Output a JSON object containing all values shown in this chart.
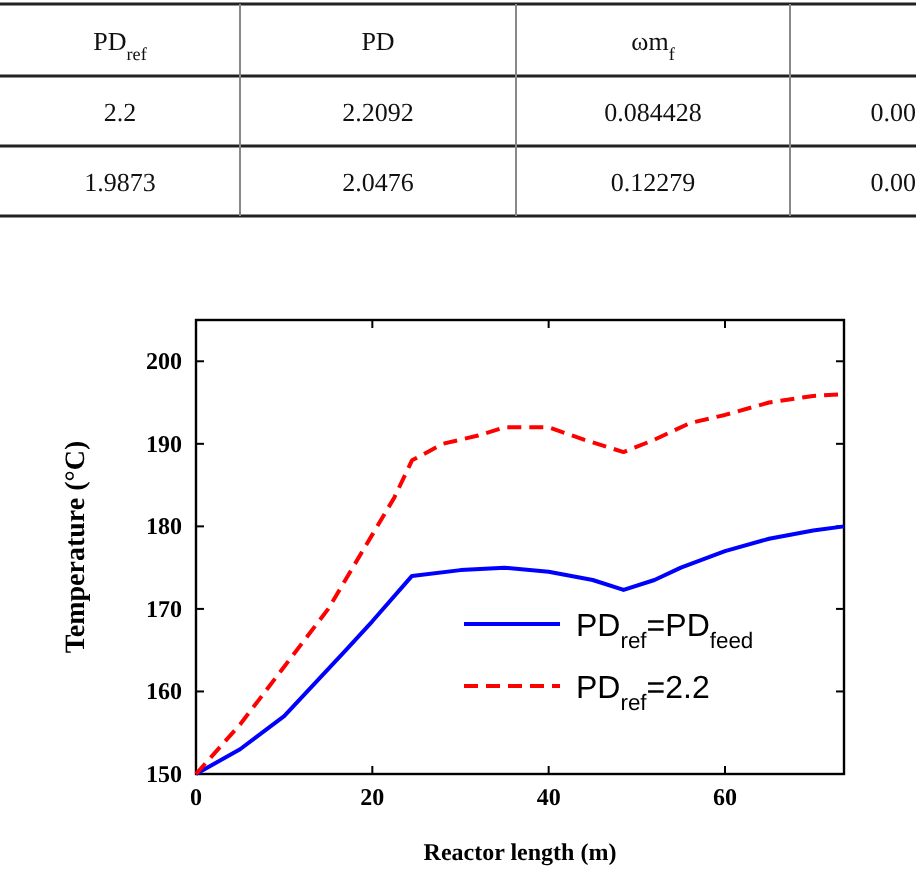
{
  "chart_data": [
    {
      "type": "other",
      "annotations": [
        "PD$_{ref}$",
        "PD",
        "ωm$_{f}$",
        "2.2",
        "2.2092",
        "0.084428",
        "0.00",
        "1.9873",
        "2.0476",
        "0.12279",
        "0.00"
      ]
    },
    {
      "type": "line",
      "xlabel": "Reactor length (m)",
      "ylabel": "Temperature (°C)",
      "xlim": [
        0,
        73.5
      ],
      "ylim": [
        150,
        205
      ],
      "xticks": [
        0,
        20,
        40,
        60
      ],
      "yticks": [
        150,
        160,
        170,
        180,
        190,
        200
      ],
      "grid": false,
      "legend": "bottom right",
      "marker": "none",
      "series": [
        {
          "name": "PD$_{ref}$=PD$_{feed}$",
          "color": "#0000ff",
          "line_style": "solid",
          "x": [
            0,
            5,
            10,
            17,
            20,
            24.5,
            30,
            35,
            40,
            45,
            48.5,
            52,
            55,
            60,
            65,
            70,
            73.5
          ],
          "values": [
            150,
            153,
            157,
            165,
            168.5,
            174,
            174.7,
            175,
            174.5,
            173.5,
            172.3,
            173.5,
            175,
            177,
            178.5,
            179.5,
            180
          ]
        },
        {
          "name": "PD$_{ref}$=2.2",
          "color": "#ff0000",
          "line_style": "dashed",
          "x": [
            0,
            5,
            10,
            15,
            20,
            22.5,
            24.5,
            28,
            32,
            35,
            40,
            44,
            48.5,
            52,
            56,
            60,
            65,
            70,
            73.5
          ],
          "values": [
            150,
            156,
            163,
            170,
            179,
            183.5,
            188,
            190,
            191,
            192,
            192,
            190.5,
            189,
            190.5,
            192.5,
            193.5,
            195,
            195.8,
            196
          ]
        }
      ]
    }
  ]
}
